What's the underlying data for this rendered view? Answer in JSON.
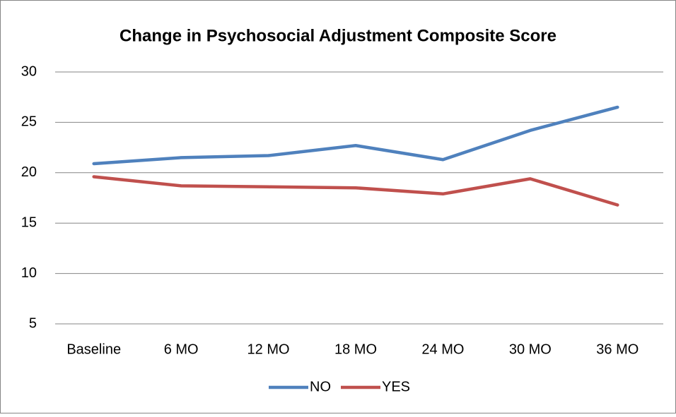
{
  "chart_data": {
    "type": "line",
    "title": "Change in Psychosocial Adjustment  Composite Score",
    "categories": [
      "Baseline",
      "6 MO",
      "12 MO",
      "18 MO",
      "24 MO",
      "30 MO",
      "36 MO"
    ],
    "series": [
      {
        "name": "NO",
        "color": "#4f81bd",
        "values": [
          20.9,
          21.5,
          21.7,
          22.7,
          21.3,
          24.2,
          26.5
        ]
      },
      {
        "name": "YES",
        "color": "#c0504d",
        "values": [
          19.6,
          18.7,
          18.6,
          18.5,
          17.9,
          19.4,
          16.8
        ]
      }
    ],
    "ylim": [
      5,
      30
    ],
    "yticks": [
      5,
      10,
      15,
      20,
      25,
      30
    ],
    "grid": true,
    "legend": "bottom"
  }
}
